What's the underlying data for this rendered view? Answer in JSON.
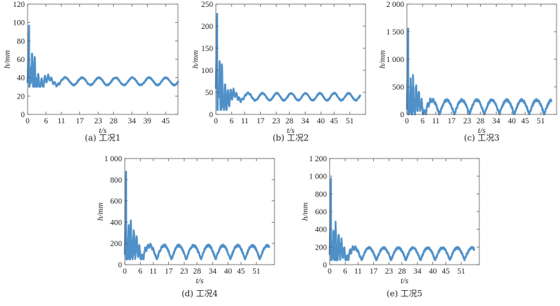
{
  "colors": {
    "series": "#4f90c8",
    "axis": "#555555",
    "text": "#222222"
  },
  "chart_data": [
    {
      "type": "line",
      "caption": "(a) 工况1",
      "xlabel": "t/s",
      "ylabel": "h/mm",
      "xlim": [
        0,
        49
      ],
      "ylim": [
        0,
        120
      ],
      "xticks": [
        0,
        6,
        11,
        17,
        23,
        28,
        34,
        39,
        45
      ],
      "yticks": [
        0,
        20,
        40,
        60,
        80,
        100,
        120
      ],
      "ytick_labels": [
        "0",
        "20",
        "40",
        "60",
        "80",
        "100",
        "120"
      ],
      "series": [
        {
          "name": "h",
          "x_end": 49,
          "envelope": {
            "start": 35,
            "peak": 98,
            "floor": 30,
            "mid": 36,
            "amp": 4
          }
        }
      ]
    },
    {
      "type": "line",
      "caption": "(b) 工况2",
      "xlabel": "t/s",
      "ylabel": "h/mm",
      "xlim": [
        0,
        57
      ],
      "ylim": [
        0,
        250
      ],
      "xticks": [
        0,
        6,
        11,
        17,
        23,
        28,
        34,
        40,
        45,
        51
      ],
      "yticks": [
        0,
        50,
        100,
        150,
        200,
        250
      ],
      "ytick_labels": [
        "0",
        "50",
        "100",
        "150",
        "200",
        "250"
      ],
      "series": [
        {
          "name": "h",
          "x_end": 55,
          "envelope": {
            "start": 60,
            "peak": 232,
            "floor": 10,
            "mid": 40,
            "amp": 8
          }
        }
      ]
    },
    {
      "type": "line",
      "caption": "(c) 工况3",
      "xlabel": "t/s",
      "ylabel": "h/mm",
      "xlim": [
        0,
        57
      ],
      "ylim": [
        0,
        2000
      ],
      "xticks": [
        0,
        6,
        11,
        17,
        23,
        28,
        34,
        40,
        45,
        51
      ],
      "yticks": [
        0,
        500,
        1000,
        1500,
        2000
      ],
      "ytick_labels": [
        "0",
        "500",
        "1 000",
        "1 500",
        "2 000"
      ],
      "series": [
        {
          "name": "h",
          "x_end": 55,
          "envelope": {
            "start": 100,
            "peak": 1590,
            "floor": 0,
            "mid": 130,
            "amp": 130
          }
        }
      ]
    },
    {
      "type": "line",
      "caption": "(d) 工况4",
      "xlabel": "t/s",
      "ylabel": "h/mm",
      "xlim": [
        0,
        58
      ],
      "ylim": [
        0,
        1000
      ],
      "xticks": [
        0,
        6,
        11,
        17,
        23,
        28,
        34,
        40,
        45,
        51
      ],
      "yticks": [
        0,
        200,
        400,
        600,
        800,
        1000
      ],
      "ytick_labels": [
        "0",
        "200",
        "400",
        "600",
        "800",
        "1 000"
      ],
      "series": [
        {
          "name": "h",
          "x_end": 56,
          "envelope": {
            "start": 100,
            "peak": 880,
            "floor": 50,
            "mid": 110,
            "amp": 65
          }
        }
      ]
    },
    {
      "type": "line",
      "caption": "(e) 工况5",
      "xlabel": "t/s",
      "ylabel": "h/mm",
      "xlim": [
        0,
        58
      ],
      "ylim": [
        0,
        1200
      ],
      "xticks": [
        0,
        6,
        11,
        17,
        23,
        28,
        34,
        40,
        45,
        51
      ],
      "yticks": [
        0,
        200,
        400,
        600,
        800,
        1000,
        1200
      ],
      "ytick_labels": [
        "0",
        "200",
        "400",
        "600",
        "800",
        "1 000",
        "1 200"
      ],
      "series": [
        {
          "name": "h",
          "x_end": 56,
          "envelope": {
            "start": 120,
            "peak": 980,
            "floor": 50,
            "mid": 130,
            "amp": 70
          }
        }
      ]
    }
  ]
}
